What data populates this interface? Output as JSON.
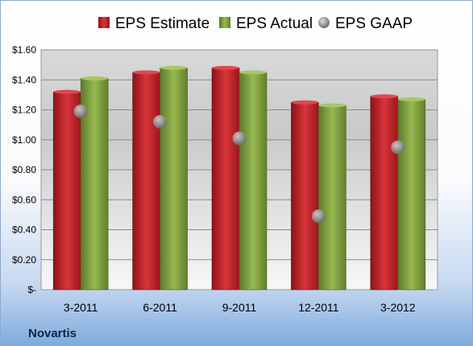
{
  "company": "Novartis",
  "colors": {
    "estimate": "#c0262a",
    "actual": "#7a9a3a",
    "gaap": "#a9abad"
  },
  "chart_data": {
    "type": "bar",
    "categories": [
      "3-2011",
      "6-2011",
      "9-2011",
      "12-2011",
      "3-2012"
    ],
    "series": [
      {
        "name": "EPS Estimate",
        "kind": "bar",
        "values": [
          1.32,
          1.45,
          1.48,
          1.25,
          1.29
        ]
      },
      {
        "name": "EPS Actual",
        "kind": "bar",
        "values": [
          1.41,
          1.48,
          1.45,
          1.23,
          1.27
        ]
      },
      {
        "name": "EPS GAAP",
        "kind": "scatter",
        "values": [
          1.19,
          1.12,
          1.01,
          0.49,
          0.95
        ]
      }
    ],
    "ylim": [
      0,
      1.6
    ],
    "yticks": [
      0,
      0.2,
      0.4,
      0.6,
      0.8,
      1.0,
      1.2,
      1.4,
      1.6
    ],
    "ytick_labels": [
      "$-",
      "$0.20",
      "$0.40",
      "$0.60",
      "$0.80",
      "$1.00",
      "$1.20",
      "$1.40",
      "$1.60"
    ],
    "grid": true,
    "legend": "top"
  }
}
